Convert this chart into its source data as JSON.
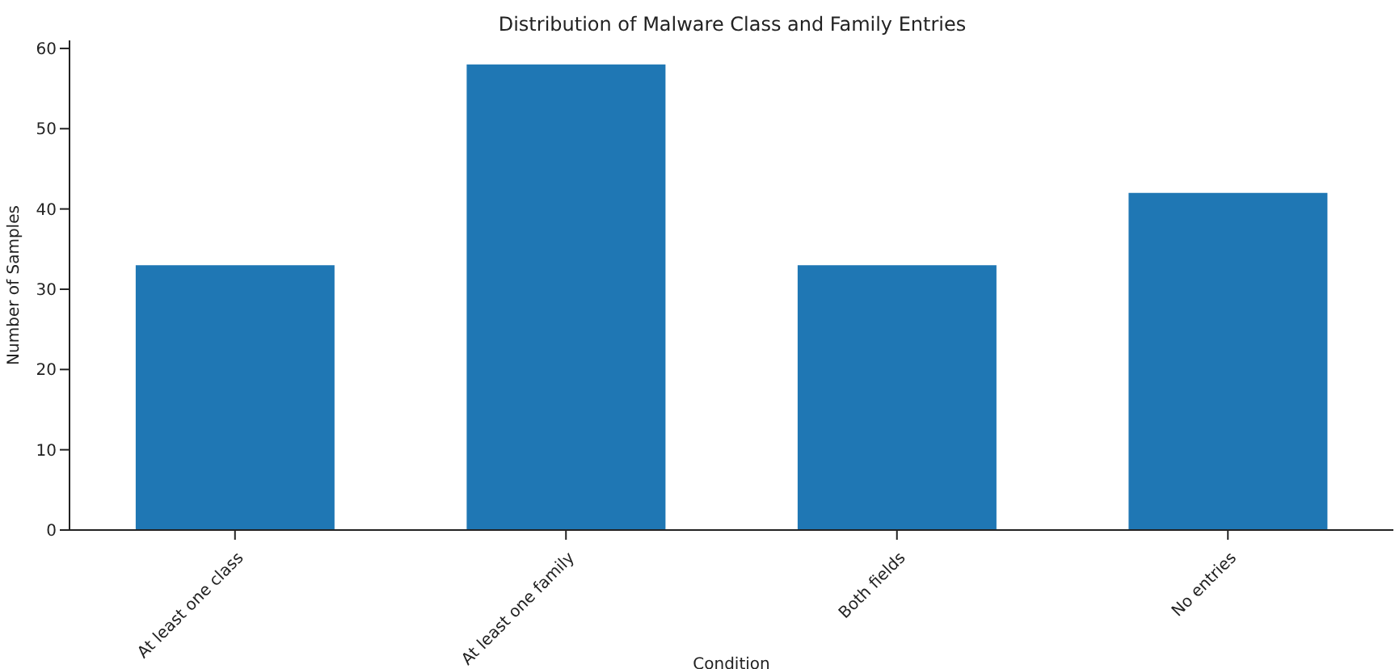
{
  "chart_data": {
    "type": "bar",
    "title": "Distribution of Malware Class and Family Entries",
    "xlabel": "Condition",
    "ylabel": "Number of Samples",
    "categories": [
      "At least one class",
      "At least one family",
      "Both fields",
      "No entries"
    ],
    "values": [
      33,
      58,
      33,
      42
    ],
    "color": "#1f77b4",
    "ylim": [
      0,
      61
    ],
    "yticks": [
      0,
      10,
      20,
      30,
      40,
      50,
      60
    ],
    "grid": false,
    "legend": false
  }
}
